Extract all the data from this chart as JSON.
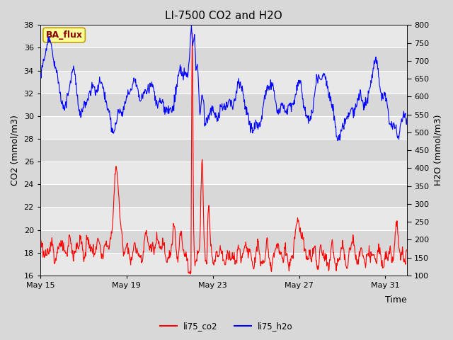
{
  "title": "LI-7500 CO2 and H2O",
  "xlabel": "Time",
  "ylabel_left": "CO2 (mmol/m3)",
  "ylabel_right": "H2O (mmol/m3)",
  "ylim_left": [
    16,
    38
  ],
  "ylim_right": [
    100,
    800
  ],
  "yticks_left": [
    16,
    18,
    20,
    22,
    24,
    26,
    28,
    30,
    32,
    34,
    36,
    38
  ],
  "yticks_right": [
    100,
    150,
    200,
    250,
    300,
    350,
    400,
    450,
    500,
    550,
    600,
    650,
    700,
    750,
    800
  ],
  "fig_bg_color": "#d8d8d8",
  "plot_bg_color": "#e8e8e8",
  "band_light": "#e8e8e8",
  "band_dark": "#d8d8d8",
  "annotation_text": "BA_flux",
  "annotation_bg": "#ffff99",
  "annotation_border": "#c0a000",
  "annotation_color": "#8b0000",
  "legend_labels": [
    "li75_co2",
    "li75_h2o"
  ],
  "co2_color": "red",
  "h2o_color": "blue",
  "line_width": 0.8,
  "xlim": [
    0,
    17
  ],
  "xtick_positions": [
    0,
    4,
    8,
    12,
    16
  ],
  "xtick_labels": [
    "May 15",
    "May 19",
    "May 23",
    "May 27",
    "May 31"
  ],
  "grid_color": "#ffffff",
  "title_fontsize": 11,
  "label_fontsize": 9,
  "tick_fontsize": 8
}
